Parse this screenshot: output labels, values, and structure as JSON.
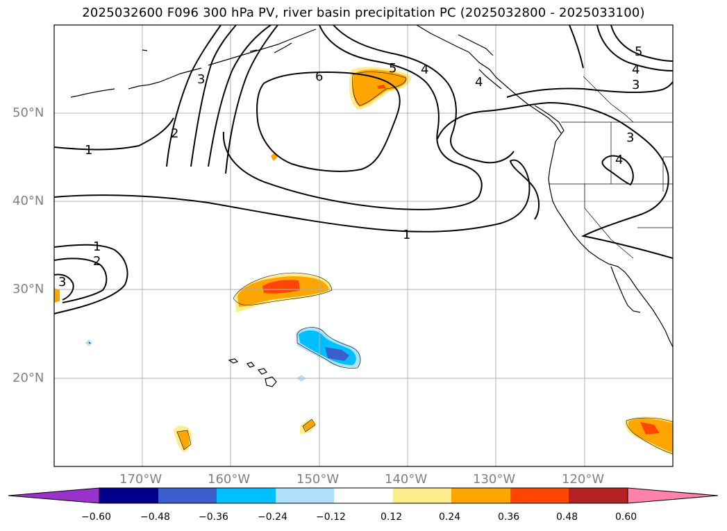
{
  "title": "2025032600 F096 300 hPa PV, river basin precipitation PC (2025032800 - 2025033100)",
  "lat_labels": [
    "50°N",
    "40°N",
    "30°N",
    "20°N"
  ],
  "lon_labels": [
    "170°W",
    "160°W",
    "150°W",
    "140°W",
    "130°W",
    "120°W"
  ],
  "contour_labels": [
    "1",
    "1",
    "1",
    "2",
    "2",
    "3",
    "3",
    "3",
    "4",
    "4",
    "4",
    "5",
    "5",
    "6",
    "3",
    "4"
  ],
  "colorbar": {
    "ticks": [
      "−0.60",
      "−0.48",
      "−0.36",
      "−0.24",
      "−0.12",
      "0.12",
      "0.24",
      "0.36",
      "0.48",
      "0.60"
    ],
    "colors": [
      "#9932cc",
      "#00008b",
      "#3a5fcd",
      "#00bfff",
      "#b0e2ff",
      "#ffffff",
      "#ffec8b",
      "#ffa500",
      "#ff4500",
      "#b22222",
      "#ff82ab"
    ]
  },
  "colors": {
    "positive_low": "#ffec8b",
    "positive_mid": "#ffa500",
    "positive_high": "#ff4500",
    "negative_low": "#b0e2ff",
    "negative_mid": "#00bfff",
    "negative_high": "#3a5fcd",
    "grid": "#b0b0b0"
  }
}
